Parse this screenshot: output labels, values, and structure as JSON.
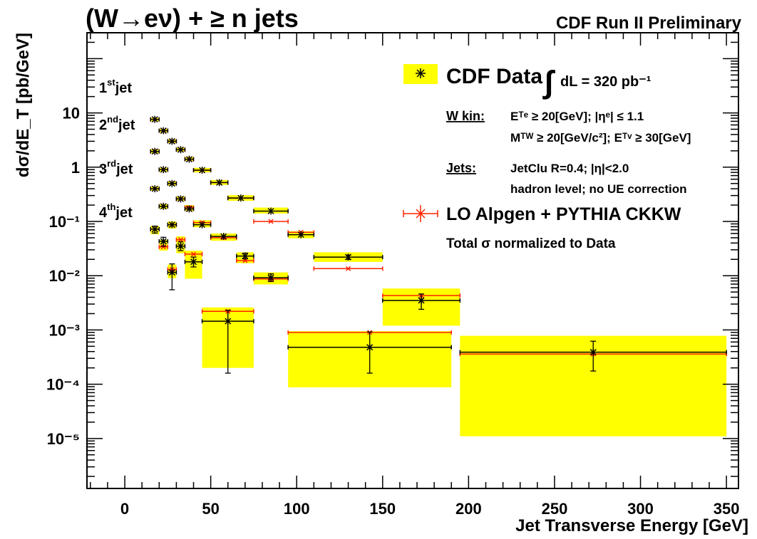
{
  "chart_data": {
    "type": "scatter",
    "title": "(W→eν) + ≥ n jets",
    "subtitle": "CDF Run II Preliminary",
    "xlabel": "Jet Transverse Energy [GeV]",
    "ylabel": "dσ/dE_T [pb/GeV]",
    "xlim": [
      -22,
      357
    ],
    "ylim": [
      1.2e-06,
      300
    ],
    "y_scale": "log",
    "x_ticks": [
      "0",
      "50",
      "100",
      "150",
      "200",
      "250",
      "300",
      "350"
    ],
    "y_ticks": [
      "10⁻⁵",
      "10⁻⁴",
      "10⁻³",
      "10⁻²",
      "10⁻¹",
      "1",
      "10"
    ],
    "jet_labels": [
      {
        "n": "1",
        "sup": "st",
        "text": "jet"
      },
      {
        "n": "2",
        "sup": "nd",
        "text": "jet"
      },
      {
        "n": "3",
        "sup": "rd",
        "text": "jet"
      },
      {
        "n": "4",
        "sup": "th",
        "text": "jet"
      }
    ],
    "legend": {
      "data_label": "CDF Data",
      "lumi_integral": "∫",
      "lumi_text": "dL =  320 pb⁻¹",
      "wkin_label": "W kin:",
      "wkin_line1": "Eᵀᵉ ≥ 20[GeV]; |ηᵉ| ≤ 1.1",
      "wkin_line2": "Mᵀᵂ ≥ 20[GeV/c²]; Eᵀᵛ ≥ 30[GeV]",
      "jets_label": "Jets:",
      "jets_line1": "JetClu R=0.4; |η|<2.0",
      "jets_line2": "hadron level; no UE correction",
      "mc_label": "LO Alpgen + PYTHIA CKKW",
      "norm_label": "Total σ normalized to Data"
    },
    "colors": {
      "band": "#ffff00",
      "data": "#000000",
      "mc": "#ff2200"
    },
    "series": [
      {
        "name": "1st jet",
        "points": [
          {
            "x": 17.5,
            "xw": 2.5,
            "y": 7.6,
            "mc": 7.6,
            "bl": 7.0,
            "bh": 8.2
          },
          {
            "x": 22.5,
            "xw": 2.5,
            "y": 4.7,
            "mc": 4.7,
            "bl": 4.35,
            "bh": 5.1
          },
          {
            "x": 27.5,
            "xw": 2.5,
            "y": 3.0,
            "mc": 3.0,
            "bl": 2.8,
            "bh": 3.25
          },
          {
            "x": 32.5,
            "xw": 2.5,
            "y": 2.1,
            "mc": 2.1,
            "bl": 1.95,
            "bh": 2.3
          },
          {
            "x": 37.5,
            "xw": 2.5,
            "y": 1.4,
            "mc": 1.4,
            "bl": 1.3,
            "bh": 1.55
          },
          {
            "x": 45,
            "xw": 5,
            "y": 0.88,
            "mc": 0.88,
            "bl": 0.8,
            "bh": 0.97
          },
          {
            "x": 55,
            "xw": 5,
            "y": 0.52,
            "mc": 0.52,
            "bl": 0.47,
            "bh": 0.58
          },
          {
            "x": 67.5,
            "xw": 7.5,
            "y": 0.27,
            "mc": 0.27,
            "bl": 0.24,
            "bh": 0.305
          },
          {
            "x": 85,
            "xw": 10,
            "y": 0.155,
            "mc": 0.1,
            "bl": 0.14,
            "bh": 0.18
          },
          {
            "x": 102.5,
            "xw": 7.5,
            "y": 0.057,
            "mc": 0.063,
            "bl": 0.049,
            "bh": 0.066
          },
          {
            "x": 130,
            "xw": 20,
            "y": 0.022,
            "mc": 0.0135,
            "ylo": 0.02,
            "yhi": 0.024,
            "bl": 0.018,
            "bh": 0.027
          }
        ]
      },
      {
        "name": "2nd jet",
        "points": [
          {
            "x": 17.5,
            "xw": 2.5,
            "y": 1.95,
            "mc": 1.95,
            "bl": 1.8,
            "bh": 2.15
          },
          {
            "x": 22.5,
            "xw": 2.5,
            "y": 0.9,
            "mc": 0.9,
            "bl": 0.82,
            "bh": 0.98
          },
          {
            "x": 27.5,
            "xw": 2.5,
            "y": 0.5,
            "mc": 0.5,
            "bl": 0.46,
            "bh": 0.55
          },
          {
            "x": 32.5,
            "xw": 2.5,
            "y": 0.26,
            "mc": 0.26,
            "bl": 0.24,
            "bh": 0.29
          },
          {
            "x": 37.5,
            "xw": 2.5,
            "y": 0.17,
            "mc": 0.18,
            "bl": 0.155,
            "bh": 0.2
          },
          {
            "x": 45,
            "xw": 5,
            "y": 0.087,
            "mc": 0.095,
            "bl": 0.078,
            "bh": 0.105
          },
          {
            "x": 57.5,
            "xw": 7.5,
            "y": 0.053,
            "mc": 0.05,
            "bl": 0.044,
            "bh": 0.06
          },
          {
            "x": 70,
            "xw": 5,
            "y": 0.023,
            "mc": 0.019,
            "ylo": 0.0205,
            "yhi": 0.026,
            "bl": 0.017,
            "bh": 0.027
          },
          {
            "x": 85,
            "xw": 10,
            "y": 0.0092,
            "mc": 0.0087,
            "ylo": 0.0078,
            "yhi": 0.0108,
            "bl": 0.0069,
            "bh": 0.0115
          },
          {
            "x": 172.5,
            "xw": 22.5,
            "y": 0.0035,
            "mc": 0.0043,
            "ylo": 0.0024,
            "yhi": 0.0046,
            "bl": 0.0012,
            "bh": 0.0058
          },
          {
            "x": 272.5,
            "xw": 77.5,
            "y": 0.00039,
            "mc": 0.00036,
            "ylo": 0.000175,
            "yhi": 0.00062,
            "bl": 1.1e-05,
            "bh": 0.00078
          }
        ]
      },
      {
        "name": "3rd jet",
        "points": [
          {
            "x": 17.5,
            "xw": 2.5,
            "y": 0.4,
            "mc": 0.4,
            "bl": 0.37,
            "bh": 0.44
          },
          {
            "x": 22.5,
            "xw": 2.5,
            "y": 0.19,
            "mc": 0.19,
            "bl": 0.17,
            "bh": 0.21
          },
          {
            "x": 27.5,
            "xw": 2.5,
            "y": 0.087,
            "mc": 0.087,
            "bl": 0.074,
            "bh": 0.1
          },
          {
            "x": 32.5,
            "xw": 2.5,
            "y": 0.035,
            "mc": 0.046,
            "ylo": 0.029,
            "yhi": 0.042,
            "bl": 0.026,
            "bh": 0.053
          },
          {
            "x": 40,
            "xw": 5,
            "y": 0.018,
            "mc": 0.025,
            "ylo": 0.0145,
            "yhi": 0.022,
            "bl": 0.0088,
            "bh": 0.029
          },
          {
            "x": 60,
            "xw": 15,
            "y": 0.00145,
            "mc": 0.0022,
            "ylo": 0.00016,
            "yhi": 0.0023,
            "bl": 0.0002,
            "bh": 0.0026
          },
          {
            "x": 142.5,
            "xw": 47.5,
            "y": 0.00048,
            "mc": 0.0009,
            "ylo": 0.00016,
            "yhi": 0.00092,
            "bl": 8.75e-05,
            "bh": 0.00095
          }
        ]
      },
      {
        "name": "4th jet",
        "points": [
          {
            "x": 17.5,
            "xw": 2.5,
            "y": 0.072,
            "mc": 0.072,
            "ylo": 0.061,
            "yhi": 0.082,
            "bl": 0.058,
            "bh": 0.083
          },
          {
            "x": 22.5,
            "xw": 2.5,
            "y": 0.043,
            "mc": 0.034,
            "ylo": 0.035,
            "yhi": 0.051,
            "bl": 0.029,
            "bh": 0.046
          },
          {
            "x": 27.5,
            "xw": 2.5,
            "y": 0.0115,
            "mc": 0.013,
            "ylo": 0.0055,
            "yhi": 0.0165,
            "bl": 0.009,
            "bh": 0.016
          }
        ]
      }
    ]
  }
}
